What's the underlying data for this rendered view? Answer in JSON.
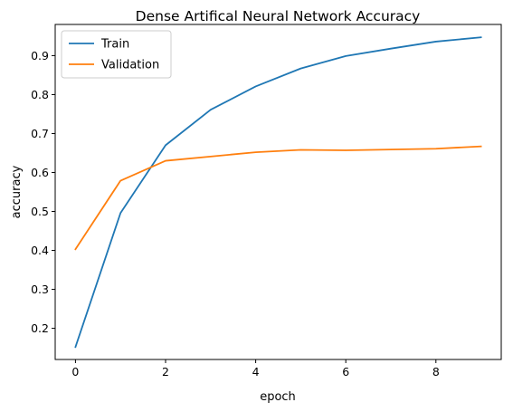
{
  "chart_data": {
    "type": "line",
    "title": "Dense Artifical Neural Network Accuracy",
    "xlabel": "epoch",
    "ylabel": "accuracy",
    "x": [
      0,
      1,
      2,
      3,
      4,
      5,
      6,
      7,
      8,
      9
    ],
    "xlim": [
      -0.45,
      9.45
    ],
    "ylim": [
      0.12,
      0.98
    ],
    "xticks": [
      "0",
      "2",
      "4",
      "6",
      "8"
    ],
    "yticks": [
      "0.2",
      "0.3",
      "0.4",
      "0.5",
      "0.6",
      "0.7",
      "0.8",
      "0.9"
    ],
    "grid": false,
    "legend_position": "top-left",
    "series": [
      {
        "name": "Train",
        "color": "#1f77b4",
        "values": [
          0.152,
          0.496,
          0.67,
          0.761,
          0.821,
          0.867,
          0.899,
          0.918,
          0.936,
          0.947
        ]
      },
      {
        "name": "Validation",
        "color": "#ff7f0e",
        "values": [
          0.403,
          0.579,
          0.63,
          0.641,
          0.652,
          0.658,
          0.657,
          0.659,
          0.661,
          0.667
        ]
      }
    ]
  }
}
